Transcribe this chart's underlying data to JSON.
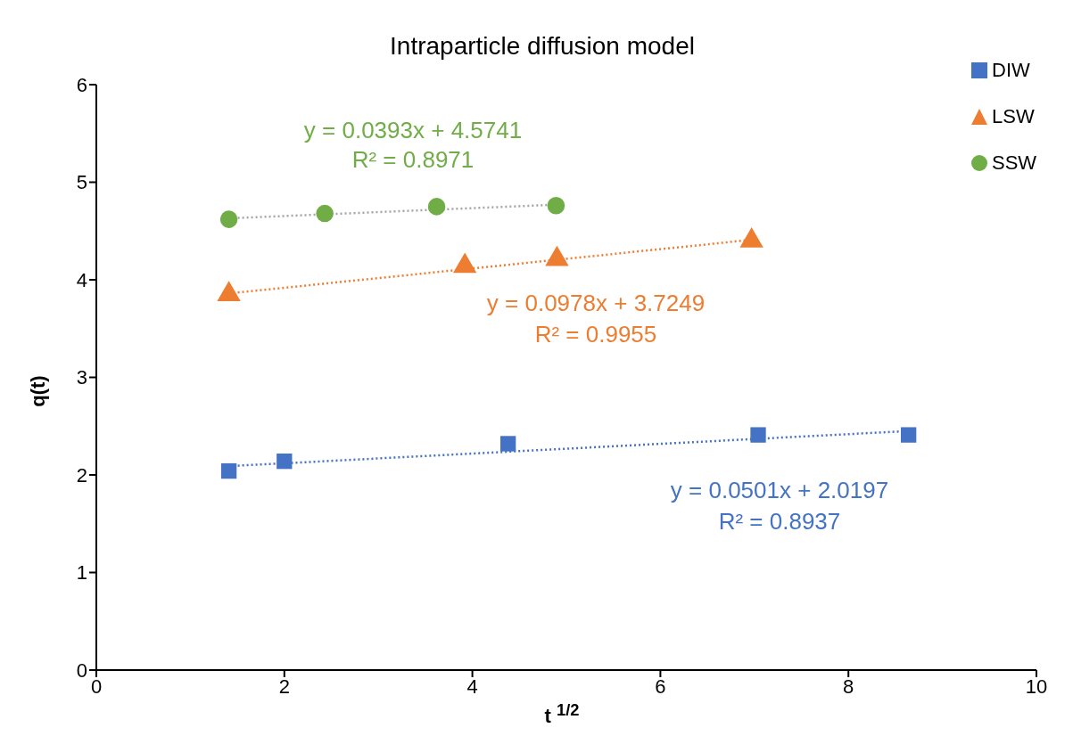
{
  "chart_data": {
    "type": "scatter",
    "title": "Intraparticle diffusion model",
    "xlabel": "t $^{1/2}$",
    "ylabel": "q(t)",
    "xlim": [
      0,
      10
    ],
    "xticks": [
      0,
      2,
      4,
      6,
      8,
      10
    ],
    "ylim": [
      0,
      6
    ],
    "yticks": [
      0,
      1,
      2,
      3,
      4,
      5,
      6
    ],
    "grid": false,
    "legend": "top right",
    "series": [
      {
        "name": "DIW",
        "color": "#4472c4",
        "marker": "square",
        "x": [
          1.41,
          2.0,
          4.38,
          7.04,
          8.64
        ],
        "values": [
          2.04,
          2.14,
          2.32,
          2.41,
          2.41
        ]
      },
      {
        "name": "LSW",
        "color": "#ed7d31",
        "marker": "triangle",
        "x": [
          1.41,
          3.92,
          4.9,
          6.97
        ],
        "values": [
          3.85,
          4.14,
          4.21,
          4.4
        ]
      },
      {
        "name": "SSW",
        "color": "#70ad47",
        "marker": "circle",
        "x": [
          1.41,
          2.43,
          3.62,
          4.89
        ],
        "values": [
          4.62,
          4.68,
          4.75,
          4.76
        ]
      },
      {
        "type": "line",
        "color": "#4472c4",
        "line_style": "dotted",
        "marker": "none",
        "x": [
          1.41,
          8.64
        ],
        "values": [
          2.09,
          2.45
        ]
      },
      {
        "type": "line",
        "color": "#ed7d31",
        "line_style": "dotted",
        "marker": "none",
        "x": [
          1.41,
          6.97
        ],
        "values": [
          3.86,
          4.41
        ]
      },
      {
        "type": "line",
        "color": "#a5a5a5",
        "line_style": "dotted",
        "marker": "none",
        "x": [
          1.41,
          4.89
        ],
        "values": [
          4.63,
          4.77
        ]
      }
    ],
    "annotations": [
      "y = 0.0501x + 2.0197",
      "R² = 0.8937",
      "y = 0.0978x + 3.7249",
      "R² = 0.9955",
      "y = 0.0393x + 4.5741",
      "R² = 0.8971"
    ]
  }
}
